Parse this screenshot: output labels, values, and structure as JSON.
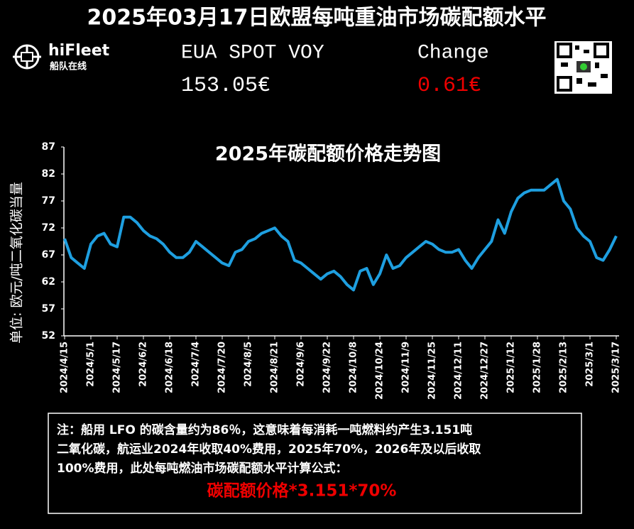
{
  "header": {
    "title": "2025年03月17日欧盟每吨重油市场碳配额水平",
    "logo": "hiFleet",
    "logo_sub": "船队在线",
    "price_label": "EUA SPOT VOY",
    "price": "153.05€",
    "change_label": "Change",
    "change": "0.61€"
  },
  "chart_data": {
    "type": "line",
    "title": "2025年碳配额价格走势图",
    "y_label": "单位: 欧元/吨二氧化碳当量",
    "categories": [
      "2024/4/15",
      null,
      null,
      null,
      "2024/5/1",
      null,
      null,
      null,
      "2024/5/17",
      null,
      null,
      null,
      "2024/6/2",
      null,
      null,
      null,
      "2024/6/18",
      null,
      null,
      null,
      "2024/7/4",
      null,
      null,
      null,
      "2024/7/20",
      null,
      null,
      null,
      "2024/8/5",
      null,
      null,
      null,
      "2024/8/21",
      null,
      null,
      null,
      "2024/9/6",
      null,
      null,
      null,
      "2024/9/22",
      null,
      null,
      null,
      "2024/10/8",
      null,
      null,
      null,
      "2024/10/24",
      null,
      null,
      null,
      "2024/11/9",
      null,
      null,
      null,
      "2024/11/25",
      null,
      null,
      null,
      "2024/12/11",
      null,
      null,
      null,
      "2024/12/27",
      null,
      null,
      null,
      "2025/1/12",
      null,
      null,
      null,
      "2025/1/28",
      null,
      null,
      null,
      "2025/2/13",
      null,
      null,
      null,
      "2025/3/1",
      null,
      null,
      null,
      "2025/3/17"
    ],
    "series": [
      {
        "name": "EUA",
        "color": "#1e9fe0",
        "values": [
          70,
          66.5,
          65.5,
          64.5,
          69,
          70.5,
          71,
          69,
          68.5,
          74,
          74,
          73,
          71.5,
          70.5,
          70,
          69,
          67.5,
          66.5,
          66.5,
          67.5,
          69.5,
          68.5,
          67.5,
          66.5,
          65.5,
          65,
          67.5,
          68,
          69.5,
          70,
          71,
          71.5,
          72,
          70.5,
          69.5,
          66,
          65.5,
          64.5,
          63.5,
          62.5,
          63.5,
          64,
          63,
          61.5,
          60.5,
          64,
          64.5,
          61.5,
          63.5,
          67,
          64.5,
          65,
          66.5,
          67.5,
          68.5,
          69.5,
          69,
          68,
          67.5,
          67.5,
          68,
          66,
          64.5,
          66.5,
          68,
          69.5,
          73.5,
          71,
          75,
          77.5,
          78.5,
          79,
          79,
          79,
          80,
          81,
          77,
          75.5,
          72,
          70.5,
          69.5,
          66.5,
          66,
          68,
          70.5
        ]
      }
    ],
    "ylim": [
      52,
      87
    ],
    "yticks": [
      52,
      57,
      62,
      67,
      72,
      77,
      82,
      87
    ],
    "grid": false
  },
  "note": {
    "lines": [
      "注：船用 LFO 的碳含量约为86％，这意味着每消耗一吨燃料约产生3.151吨",
      "二氧化碳，航运业2024年收取40%费用，2025年70%，2026年及以后收取",
      "100%费用，此处每吨燃油市场碳配额水平计算公式："
    ],
    "formula": "碳配额价格*3.151*70%"
  }
}
